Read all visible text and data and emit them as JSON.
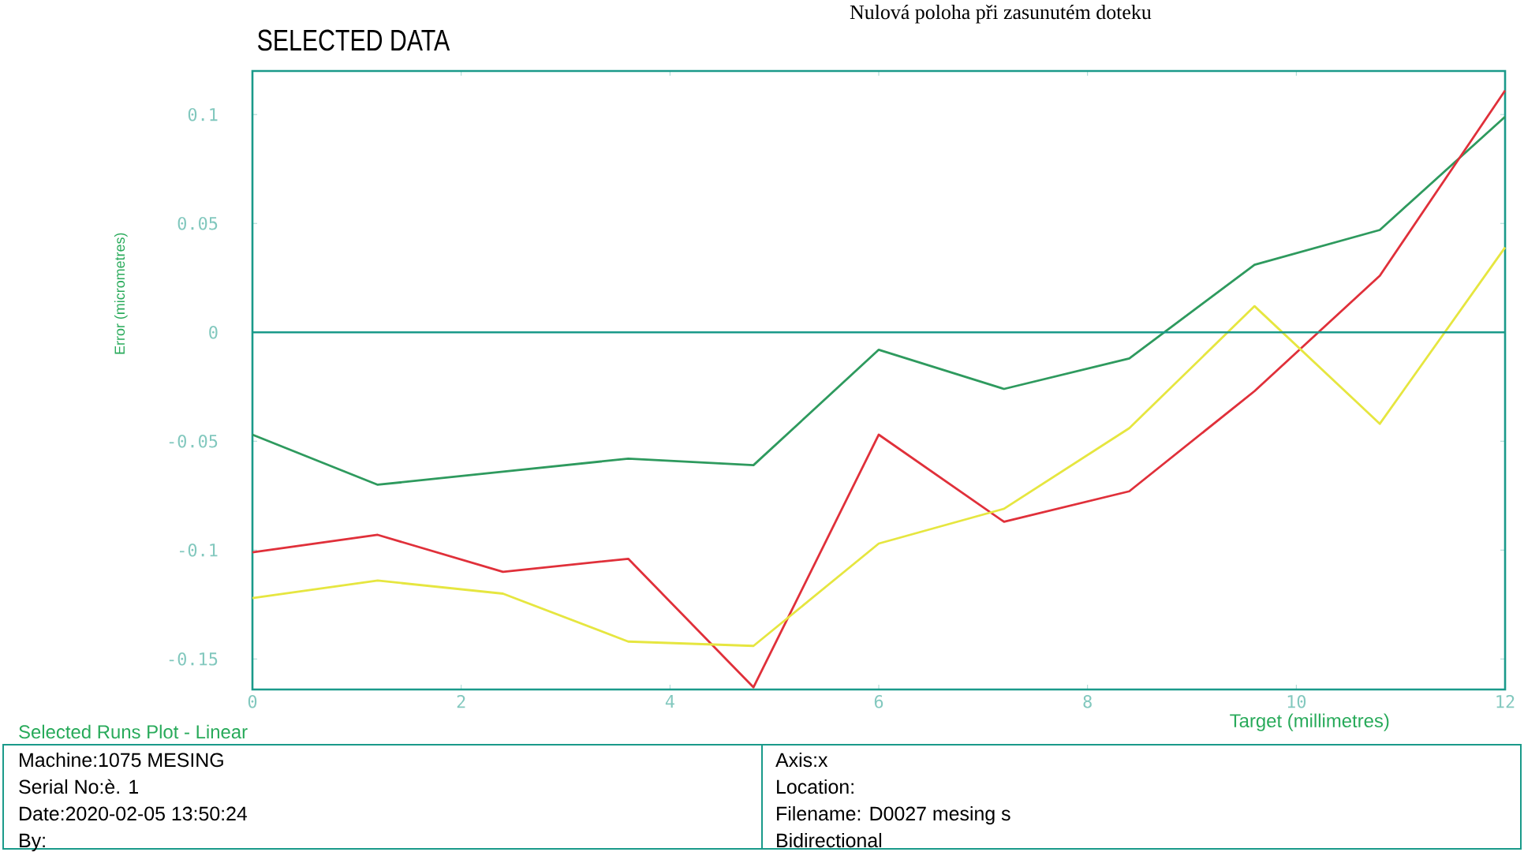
{
  "chart_data": {
    "type": "line",
    "title": "SELECTED DATA",
    "subtitle": "Nulová poloha při zasunutém doteku",
    "xlabel": "Target (millimetres)",
    "ylabel": "Error (micrometres)",
    "x": [
      0,
      1.2,
      2.4,
      3.6,
      4.8,
      6,
      7.2,
      8.4,
      9.6,
      10.8,
      12
    ],
    "series": [
      {
        "color": "#2e9a5e",
        "values": [
          -0.047,
          -0.07,
          -0.064,
          -0.058,
          -0.061,
          -0.008,
          -0.026,
          -0.012,
          0.031,
          0.047,
          0.099
        ]
      },
      {
        "color": "#e0303a",
        "values": [
          -0.101,
          -0.093,
          -0.11,
          -0.104,
          -0.163,
          -0.047,
          -0.087,
          -0.073,
          -0.027,
          0.026,
          0.111
        ]
      },
      {
        "color": "#e6e640",
        "values": [
          -0.122,
          -0.114,
          -0.12,
          -0.142,
          -0.144,
          -0.097,
          -0.081,
          -0.044,
          0.012,
          -0.042,
          0.039
        ]
      }
    ],
    "xlim": [
      0,
      12
    ],
    "ylim": [
      -0.164,
      0.12
    ],
    "xticks": [
      0,
      2,
      4,
      6,
      8,
      10,
      12
    ],
    "yticks": [
      -0.15,
      -0.1,
      -0.05,
      0,
      0.05,
      0.1
    ],
    "ref_lines": [
      {
        "axis": "y",
        "value": 0,
        "color": "#1a9a8a"
      }
    ],
    "annotations": [
      "Selected Runs Plot - Linear",
      "Machine:1075 MESING",
      "Serial No:è. 1",
      "Date:2020-02-05 13:50:24",
      "By:",
      "Axis:x",
      "Location:",
      "Filename: D0027 mesing s",
      "Bidirectional"
    ]
  }
}
